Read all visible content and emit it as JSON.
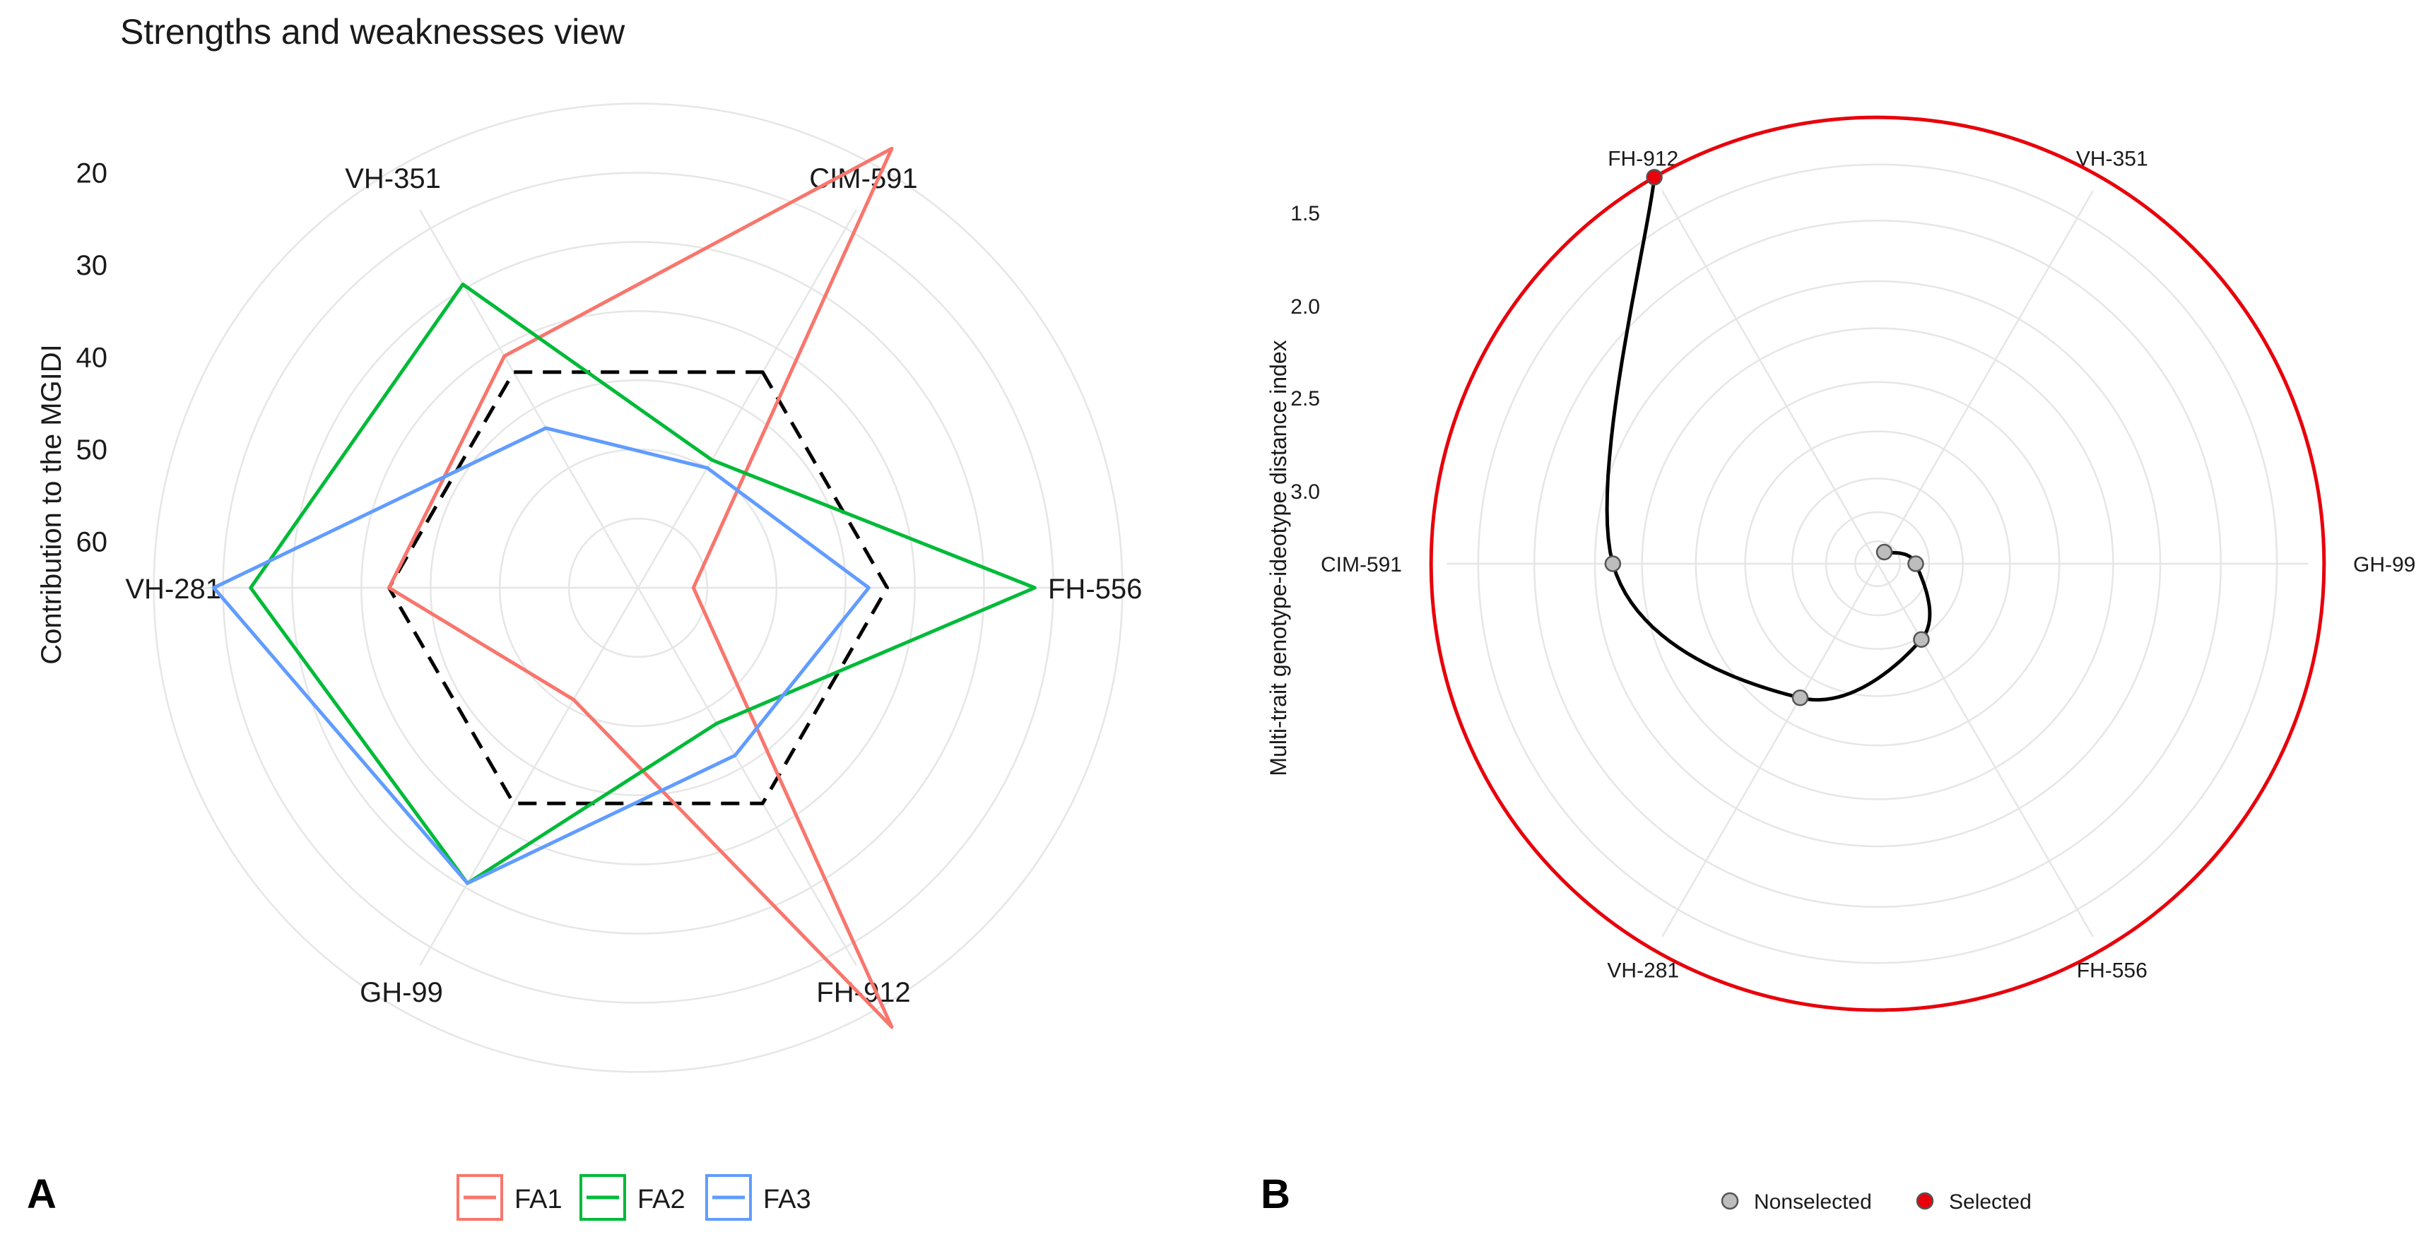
{
  "panel_a": {
    "letter": "A",
    "title": "Strengths and weaknesses view",
    "ylabel": "Contribution to the MGIDI",
    "legend": [
      {
        "label": "FA1",
        "color": "#F8766D"
      },
      {
        "label": "FA2",
        "color": "#00BA38"
      },
      {
        "label": "FA3",
        "color": "#619CFF"
      }
    ]
  },
  "panel_b": {
    "letter": "B",
    "ylabel": "Multi-trait genotype-ideotype distance index",
    "legend": [
      {
        "label": "Nonselected",
        "color": "#bdbdbd"
      },
      {
        "label": "Selected",
        "color": "#e8000b"
      }
    ]
  },
  "chart_data": [
    {
      "type": "radar",
      "title": "Strengths and weaknesses view",
      "ylabel": "Contribution to the MGIDI",
      "axis": "reversed",
      "ylim": [
        65,
        10
      ],
      "tick_labels": [
        "20",
        "30",
        "40",
        "50",
        "60"
      ],
      "categories": [
        "CIM-591",
        "FH-556",
        "FH-912",
        "GH-99",
        "VH-281",
        "VH-351"
      ],
      "series": [
        {
          "name": "FA1",
          "color": "#F8766D",
          "values": [
            10,
            59,
            10,
            51,
            38,
            36
          ]
        },
        {
          "name": "FA2",
          "color": "#00BA38",
          "values": [
            49,
            22,
            48,
            28,
            23,
            27
          ]
        },
        {
          "name": "FA3",
          "color": "#619CFF",
          "values": [
            50,
            40,
            44,
            28,
            19,
            45
          ]
        }
      ],
      "reference": {
        "style": "dashed",
        "color": "#000000",
        "values": [
          38,
          38,
          38,
          38,
          38,
          38
        ]
      }
    },
    {
      "type": "radar",
      "ylabel": "Multi-trait genotype-ideotype distance index",
      "axis": "reversed",
      "tick_labels": [
        "1.5",
        "2.0",
        "2.5",
        "3.0"
      ],
      "categories": [
        "GH-99",
        "VH-351",
        "FH-912",
        "CIM-591",
        "VH-281",
        "FH-556"
      ],
      "points": [
        {
          "genotype": "FH-912",
          "distance": 1.3,
          "status": "Selected"
        },
        {
          "genotype": "CIM-591",
          "distance": 2.0,
          "status": "Nonselected"
        },
        {
          "genotype": "VH-281",
          "distance": 2.9,
          "status": "Nonselected"
        },
        {
          "genotype": "FH-556",
          "distance": 3.2,
          "status": "Nonselected"
        },
        {
          "genotype": "GH-99",
          "distance": 3.55,
          "status": "Nonselected"
        },
        {
          "genotype": "VH-351",
          "distance": 3.6,
          "status": "Nonselected"
        }
      ],
      "cutpoint_circle": {
        "distance": 1.3,
        "color": "#e8000b"
      }
    }
  ]
}
